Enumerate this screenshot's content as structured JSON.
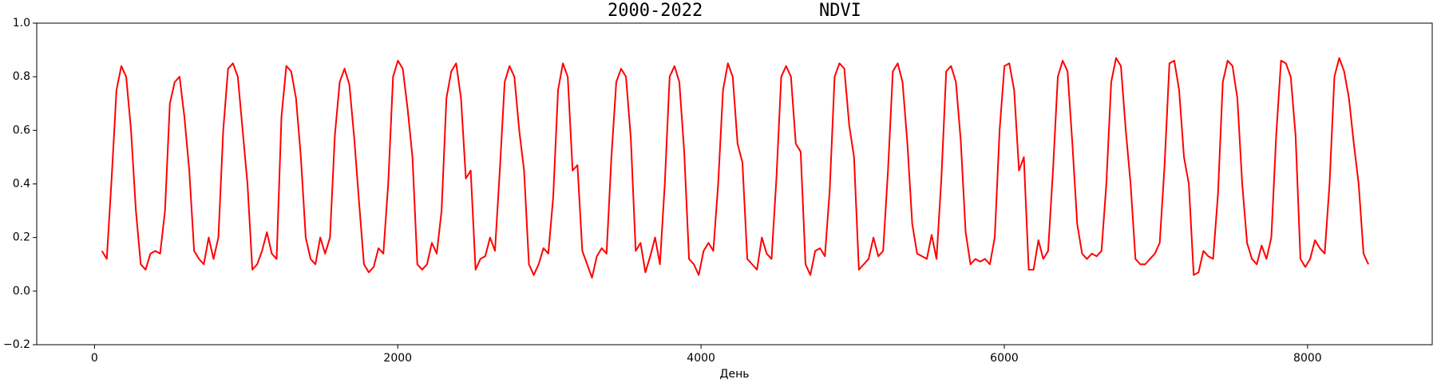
{
  "chart_data": {
    "type": "line",
    "title": "2000-2022           NDVI",
    "x_label": "День",
    "xlim": [
      -381,
      8822
    ],
    "ylim": [
      -0.2,
      1.0
    ],
    "xticks": [
      0,
      2000,
      4000,
      6000,
      8000
    ],
    "yticks": [
      {
        "value": -0.2,
        "label": "−0.2"
      },
      {
        "value": 0.0,
        "label": "0.0"
      },
      0.2,
      0.4,
      0.6,
      0.8,
      {
        "value": 1.0,
        "label": "1.0"
      }
    ],
    "grid": false,
    "x": [
      49,
      81,
      113,
      145,
      177,
      209,
      241,
      273,
      305,
      337,
      369,
      401,
      433,
      465,
      497,
      529,
      561,
      593,
      625,
      657,
      689,
      721,
      753,
      785,
      817,
      849,
      881,
      913,
      945,
      977,
      1009,
      1041,
      1073,
      1105,
      1137,
      1169,
      1201,
      1233,
      1265,
      1297,
      1329,
      1361,
      1393,
      1425,
      1457,
      1489,
      1521,
      1553,
      1585,
      1617,
      1649,
      1681,
      1713,
      1745,
      1777,
      1809,
      1841,
      1873,
      1905,
      1937,
      1969,
      2001,
      2033,
      2065,
      2097,
      2129,
      2161,
      2193,
      2225,
      2257,
      2289,
      2321,
      2353,
      2385,
      2417,
      2449,
      2481,
      2513,
      2545,
      2577,
      2609,
      2641,
      2673,
      2705,
      2737,
      2769,
      2801,
      2833,
      2865,
      2897,
      2929,
      2961,
      2993,
      3025,
      3057,
      3089,
      3121,
      3153,
      3185,
      3217,
      3249,
      3281,
      3313,
      3345,
      3377,
      3409,
      3441,
      3473,
      3505,
      3537,
      3569,
      3601,
      3633,
      3665,
      3697,
      3729,
      3761,
      3793,
      3825,
      3857,
      3889,
      3921,
      3953,
      3985,
      4017,
      4049,
      4081,
      4113,
      4145,
      4177,
      4209,
      4241,
      4273,
      4305,
      4337,
      4369,
      4401,
      4433,
      4465,
      4497,
      4529,
      4561,
      4593,
      4625,
      4657,
      4689,
      4721,
      4753,
      4785,
      4817,
      4849,
      4881,
      4913,
      4945,
      4977,
      5009,
      5041,
      5073,
      5105,
      5137,
      5169,
      5201,
      5233,
      5265,
      5297,
      5329,
      5361,
      5393,
      5425,
      5457,
      5489,
      5521,
      5553,
      5585,
      5617,
      5649,
      5681,
      5713,
      5745,
      5777,
      5809,
      5841,
      5873,
      5905,
      5937,
      5969,
      6001,
      6033,
      6065,
      6097,
      6129,
      6161,
      6193,
      6225,
      6257,
      6289,
      6321,
      6353,
      6385,
      6417,
      6449,
      6481,
      6513,
      6545,
      6577,
      6609,
      6641,
      6673,
      6705,
      6737,
      6769,
      6801,
      6833,
      6865,
      6897,
      6929,
      6961,
      6993,
      7025,
      7057,
      7089,
      7121,
      7153,
      7185,
      7217,
      7249,
      7281,
      7313,
      7345,
      7377,
      7409,
      7441,
      7473,
      7505,
      7537,
      7569,
      7601,
      7633,
      7665,
      7697,
      7729,
      7761,
      7793,
      7825,
      7857,
      7889,
      7921,
      7953,
      7985,
      8017,
      8049,
      8081,
      8113,
      8145,
      8177,
      8209,
      8241,
      8273,
      8305,
      8337,
      8369,
      8401
    ],
    "series": [
      {
        "name": "NDVI",
        "color": "#ff0000",
        "values": [
          0.15,
          0.12,
          0.42,
          0.75,
          0.84,
          0.8,
          0.6,
          0.3,
          0.1,
          0.08,
          0.14,
          0.15,
          0.14,
          0.3,
          0.7,
          0.78,
          0.8,
          0.65,
          0.45,
          0.15,
          0.12,
          0.1,
          0.2,
          0.12,
          0.2,
          0.6,
          0.83,
          0.85,
          0.8,
          0.6,
          0.4,
          0.08,
          0.1,
          0.15,
          0.22,
          0.14,
          0.12,
          0.65,
          0.84,
          0.82,
          0.72,
          0.5,
          0.2,
          0.12,
          0.1,
          0.2,
          0.14,
          0.2,
          0.58,
          0.78,
          0.83,
          0.77,
          0.57,
          0.33,
          0.1,
          0.07,
          0.09,
          0.16,
          0.14,
          0.4,
          0.8,
          0.86,
          0.83,
          0.68,
          0.5,
          0.1,
          0.08,
          0.1,
          0.18,
          0.14,
          0.3,
          0.72,
          0.82,
          0.85,
          0.72,
          0.42,
          0.45,
          0.08,
          0.12,
          0.13,
          0.2,
          0.15,
          0.45,
          0.78,
          0.84,
          0.8,
          0.6,
          0.45,
          0.1,
          0.06,
          0.1,
          0.16,
          0.14,
          0.35,
          0.75,
          0.85,
          0.8,
          0.45,
          0.47,
          0.15,
          0.1,
          0.05,
          0.13,
          0.16,
          0.14,
          0.5,
          0.78,
          0.83,
          0.8,
          0.57,
          0.15,
          0.18,
          0.07,
          0.13,
          0.2,
          0.1,
          0.4,
          0.8,
          0.84,
          0.78,
          0.52,
          0.12,
          0.1,
          0.06,
          0.15,
          0.18,
          0.15,
          0.4,
          0.75,
          0.85,
          0.8,
          0.55,
          0.48,
          0.12,
          0.1,
          0.08,
          0.2,
          0.14,
          0.12,
          0.42,
          0.8,
          0.84,
          0.8,
          0.55,
          0.52,
          0.1,
          0.06,
          0.15,
          0.16,
          0.13,
          0.38,
          0.8,
          0.85,
          0.83,
          0.62,
          0.5,
          0.08,
          0.1,
          0.12,
          0.2,
          0.13,
          0.15,
          0.45,
          0.82,
          0.85,
          0.78,
          0.55,
          0.25,
          0.14,
          0.13,
          0.12,
          0.21,
          0.12,
          0.42,
          0.82,
          0.84,
          0.78,
          0.56,
          0.22,
          0.1,
          0.12,
          0.11,
          0.12,
          0.1,
          0.2,
          0.6,
          0.84,
          0.85,
          0.75,
          0.45,
          0.5,
          0.08,
          0.08,
          0.19,
          0.12,
          0.15,
          0.45,
          0.8,
          0.86,
          0.82,
          0.55,
          0.25,
          0.14,
          0.12,
          0.14,
          0.13,
          0.15,
          0.4,
          0.78,
          0.87,
          0.84,
          0.6,
          0.4,
          0.12,
          0.1,
          0.1,
          0.12,
          0.14,
          0.18,
          0.47,
          0.85,
          0.86,
          0.75,
          0.5,
          0.4,
          0.06,
          0.07,
          0.15,
          0.13,
          0.12,
          0.36,
          0.78,
          0.86,
          0.84,
          0.72,
          0.4,
          0.18,
          0.12,
          0.1,
          0.17,
          0.12,
          0.2,
          0.58,
          0.86,
          0.85,
          0.8,
          0.58,
          0.12,
          0.09,
          0.12,
          0.19,
          0.16,
          0.14,
          0.4,
          0.8,
          0.87,
          0.82,
          0.72,
          0.55,
          0.4,
          0.14,
          0.1
        ]
      }
    ]
  }
}
